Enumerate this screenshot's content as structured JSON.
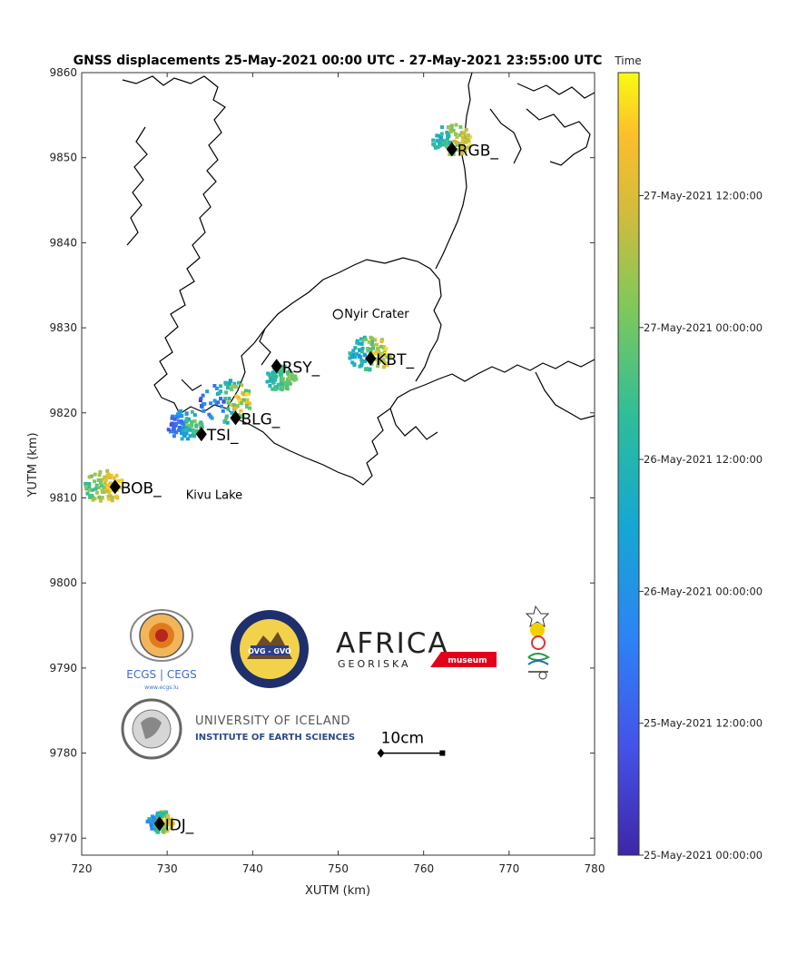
{
  "chart_data": {
    "type": "scatter",
    "title": "GNSS displacements 25-May-2021 00:00 UTC - 27-May-2021 23:55:00 UTC",
    "xlabel": "XUTM (km)",
    "ylabel": "YUTM (km)",
    "xlim": [
      720,
      780
    ],
    "ylim": [
      9768,
      9860
    ],
    "x_ticks": [
      720,
      730,
      740,
      750,
      760,
      770,
      780
    ],
    "y_ticks": [
      9770,
      9780,
      9790,
      9800,
      9810,
      9820,
      9830,
      9840,
      9850,
      9860
    ],
    "grid": false,
    "stations": [
      {
        "name": "RGB_",
        "x": 763.3,
        "y": 9851.0
      },
      {
        "name": "RSY_",
        "x": 742.8,
        "y": 9825.5
      },
      {
        "name": "KBT_",
        "x": 753.8,
        "y": 9826.4
      },
      {
        "name": "BLG_",
        "x": 738.0,
        "y": 9819.4
      },
      {
        "name": "TSI_",
        "x": 734.0,
        "y": 9817.5
      },
      {
        "name": "BOB_",
        "x": 723.9,
        "y": 9811.3
      },
      {
        "name": "IDJ_",
        "x": 729.1,
        "y": 9771.7
      }
    ],
    "places": [
      {
        "name": "Nyir Crater",
        "x": 750.4,
        "y": 9831.6
      },
      {
        "name": "Kivu Lake",
        "x": 735.5,
        "y": 9810.3
      }
    ],
    "scale_bar": {
      "label": "10cm",
      "x_start": 755.0,
      "x_end": 762.2,
      "y": 9780.0
    },
    "colorbar": {
      "label": "Time",
      "colormap": "parula",
      "tick_labels": [
        "25-May-2021 00:00:00",
        "25-May-2021 12:00:00",
        "26-May-2021 00:00:00",
        "26-May-2021 12:00:00",
        "27-May-2021 00:00:00",
        "27-May-2021 12:00:00"
      ]
    }
  },
  "logos": {
    "ecgs_text": "ECGS | CEGS",
    "ecgs_sub": "www.ecgs.lu",
    "ovg_text": "OVG - GVO",
    "africa_text": "AFRICA",
    "africa_sub": "GEORISKA",
    "museum_text": "museum",
    "iceland_line1": "UNIVERSITY OF ICELAND",
    "iceland_line2": "INSTITUTE OF EARTH SCIENCES"
  }
}
